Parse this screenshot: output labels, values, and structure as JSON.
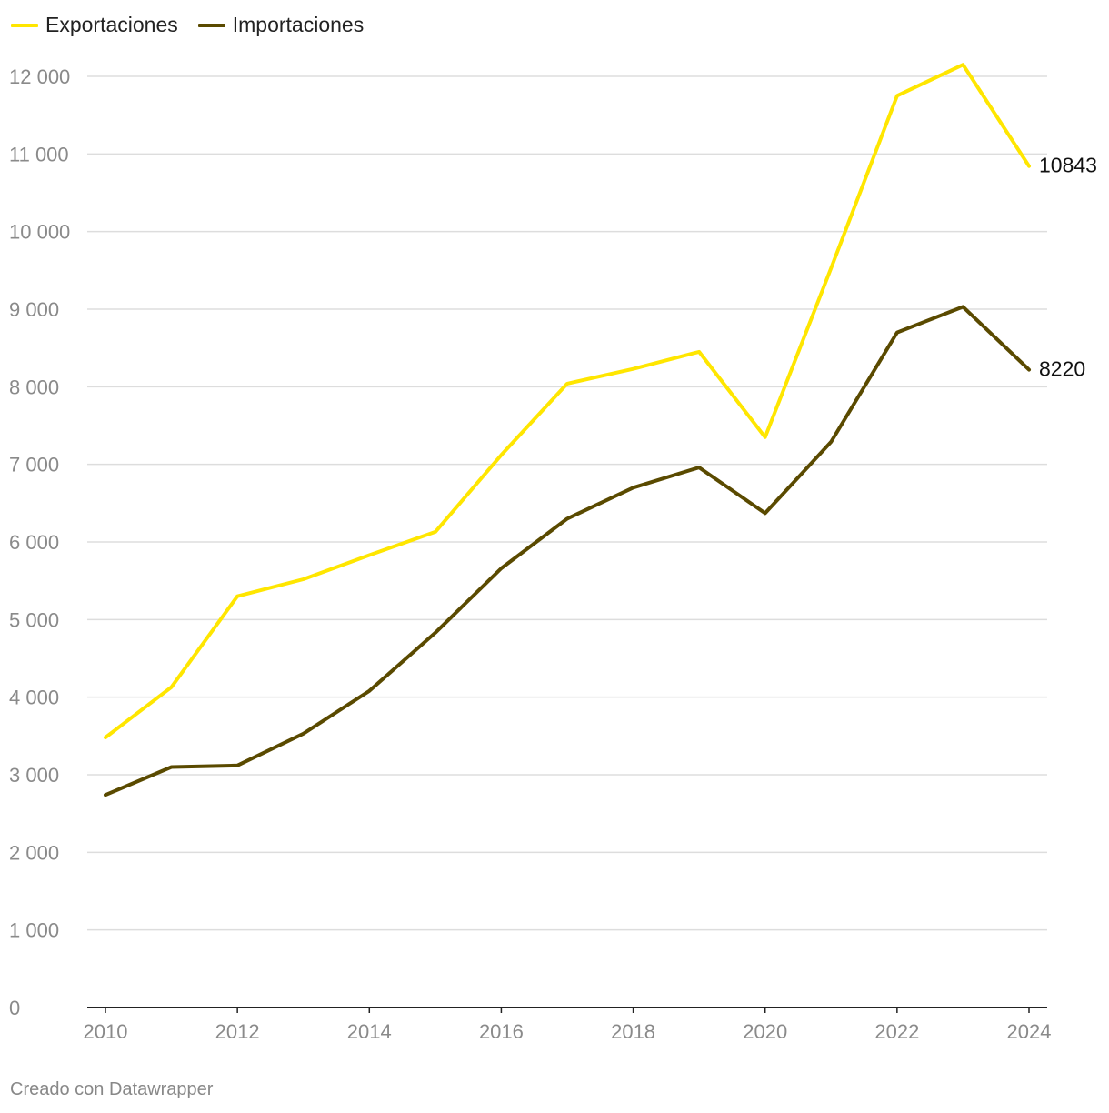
{
  "legend": [
    {
      "label": "Exportaciones",
      "color": "#ffe600"
    },
    {
      "label": "Importaciones",
      "color": "#5a4a00"
    }
  ],
  "footer": "Creado con Datawrapper",
  "chart_data": {
    "type": "line",
    "x": [
      2010,
      2011,
      2012,
      2013,
      2014,
      2015,
      2016,
      2017,
      2018,
      2019,
      2020,
      2021,
      2022,
      2023,
      2024
    ],
    "xticks": [
      "2010",
      "2012",
      "2014",
      "2016",
      "2018",
      "2020",
      "2022",
      "2024"
    ],
    "yticks": [
      "0",
      "1 000",
      "2 000",
      "3 000",
      "4 000",
      "5 000",
      "6 000",
      "7 000",
      "8 000",
      "9 000",
      "10 000",
      "11 000",
      "12 000"
    ],
    "ylim": [
      0,
      12000
    ],
    "grid": true,
    "legend_position": "top-left",
    "series": [
      {
        "name": "Exportaciones",
        "color": "#ffe600",
        "values": [
          3480,
          4130,
          5300,
          5520,
          5830,
          6130,
          7120,
          8040,
          8230,
          8450,
          7350,
          9530,
          11750,
          12150,
          10843
        ],
        "end_label": "10843"
      },
      {
        "name": "Importaciones",
        "color": "#5a4a00",
        "values": [
          2740,
          3100,
          3120,
          3530,
          4080,
          4830,
          5660,
          6300,
          6700,
          6960,
          6370,
          7290,
          8700,
          9030,
          8220
        ],
        "end_label": "8220"
      }
    ]
  }
}
